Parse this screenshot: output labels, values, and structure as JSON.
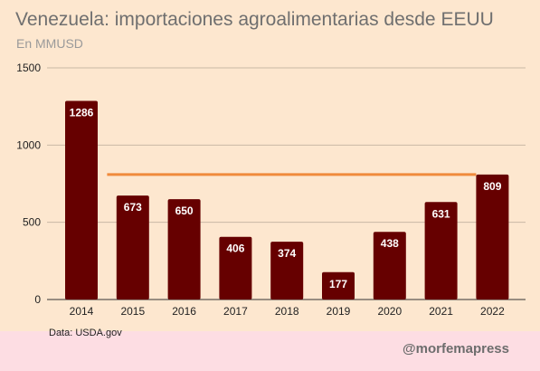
{
  "header": {
    "title": "Venezuela: importaciones agroalimentarias desde EEUU",
    "subtitle": "En MMUSD"
  },
  "footer": {
    "source": "Data: USDA.gov",
    "brand": "@morfemapress"
  },
  "colors": {
    "bar": "#660000",
    "reference_line": "#f08a3c",
    "grid": "#c9b9a4",
    "background": "#fde7cf",
    "footer_band": "#fddde3"
  },
  "chart_data": {
    "type": "bar",
    "categories": [
      "2014",
      "2015",
      "2016",
      "2017",
      "2018",
      "2019",
      "2020",
      "2021",
      "2022"
    ],
    "values": [
      1286,
      673,
      650,
      406,
      374,
      177,
      438,
      631,
      809
    ],
    "data_labels": [
      "1286",
      "673",
      "650",
      "406",
      "374",
      "177",
      "438",
      "631",
      "809"
    ],
    "ylim": [
      0,
      1500
    ],
    "yticks": [
      0,
      500,
      1000,
      1500
    ],
    "ytick_labels": [
      "0",
      "500",
      "1000",
      "1500"
    ],
    "reference_line": {
      "value": 809,
      "from": "2015",
      "to": "2022"
    },
    "grid": true
  }
}
